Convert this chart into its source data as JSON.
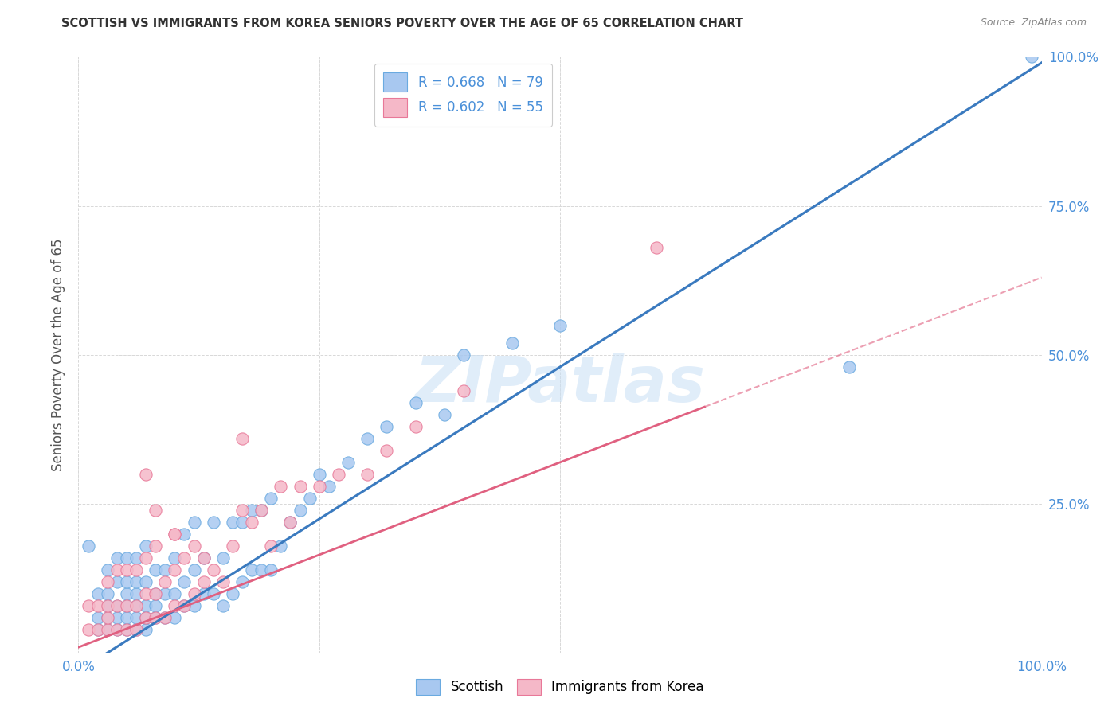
{
  "title": "SCOTTISH VS IMMIGRANTS FROM KOREA SENIORS POVERTY OVER THE AGE OF 65 CORRELATION CHART",
  "source": "Source: ZipAtlas.com",
  "ylabel": "Seniors Poverty Over the Age of 65",
  "legend_labels": [
    "Scottish",
    "Immigrants from Korea"
  ],
  "legend_r_n": [
    {
      "R": "0.668",
      "N": "79"
    },
    {
      "R": "0.602",
      "N": "55"
    }
  ],
  "scottish_color": "#a8c8f0",
  "scottish_edge_color": "#6aaae0",
  "korean_color": "#f5b8c8",
  "korean_edge_color": "#e87898",
  "background_color": "#ffffff",
  "grid_color": "#d8d8d8",
  "scottish_line_color": "#3a7abf",
  "korean_line_color": "#e06080",
  "axis_label_color": "#4a90d9",
  "title_color": "#333333",
  "watermark": "ZIPatlas",
  "scottish_scatter_x": [
    0.01,
    0.02,
    0.02,
    0.02,
    0.03,
    0.03,
    0.03,
    0.03,
    0.03,
    0.04,
    0.04,
    0.04,
    0.04,
    0.04,
    0.05,
    0.05,
    0.05,
    0.05,
    0.05,
    0.05,
    0.06,
    0.06,
    0.06,
    0.06,
    0.06,
    0.06,
    0.07,
    0.07,
    0.07,
    0.07,
    0.07,
    0.08,
    0.08,
    0.08,
    0.08,
    0.09,
    0.09,
    0.09,
    0.1,
    0.1,
    0.1,
    0.11,
    0.11,
    0.11,
    0.12,
    0.12,
    0.12,
    0.13,
    0.13,
    0.14,
    0.14,
    0.15,
    0.15,
    0.16,
    0.16,
    0.17,
    0.17,
    0.18,
    0.18,
    0.19,
    0.19,
    0.2,
    0.2,
    0.21,
    0.22,
    0.23,
    0.24,
    0.25,
    0.26,
    0.28,
    0.3,
    0.32,
    0.35,
    0.38,
    0.4,
    0.45,
    0.5,
    0.8,
    0.99
  ],
  "scottish_scatter_y": [
    0.18,
    0.04,
    0.06,
    0.1,
    0.04,
    0.06,
    0.08,
    0.1,
    0.14,
    0.04,
    0.06,
    0.08,
    0.12,
    0.16,
    0.04,
    0.06,
    0.08,
    0.1,
    0.12,
    0.16,
    0.04,
    0.06,
    0.08,
    0.1,
    0.12,
    0.16,
    0.04,
    0.06,
    0.08,
    0.12,
    0.18,
    0.06,
    0.08,
    0.1,
    0.14,
    0.06,
    0.1,
    0.14,
    0.06,
    0.1,
    0.16,
    0.08,
    0.12,
    0.2,
    0.08,
    0.14,
    0.22,
    0.1,
    0.16,
    0.1,
    0.22,
    0.08,
    0.16,
    0.1,
    0.22,
    0.12,
    0.22,
    0.14,
    0.24,
    0.14,
    0.24,
    0.14,
    0.26,
    0.18,
    0.22,
    0.24,
    0.26,
    0.3,
    0.28,
    0.32,
    0.36,
    0.38,
    0.42,
    0.4,
    0.5,
    0.52,
    0.55,
    0.48,
    1.0
  ],
  "korean_scatter_x": [
    0.01,
    0.01,
    0.02,
    0.02,
    0.03,
    0.03,
    0.03,
    0.03,
    0.04,
    0.04,
    0.04,
    0.05,
    0.05,
    0.05,
    0.06,
    0.06,
    0.06,
    0.07,
    0.07,
    0.07,
    0.08,
    0.08,
    0.08,
    0.08,
    0.09,
    0.09,
    0.1,
    0.1,
    0.1,
    0.11,
    0.11,
    0.12,
    0.12,
    0.13,
    0.14,
    0.15,
    0.16,
    0.17,
    0.18,
    0.19,
    0.2,
    0.21,
    0.22,
    0.23,
    0.25,
    0.27,
    0.3,
    0.32,
    0.35,
    0.4,
    0.07,
    0.1,
    0.13,
    0.17,
    0.6
  ],
  "korean_scatter_y": [
    0.04,
    0.08,
    0.04,
    0.08,
    0.04,
    0.06,
    0.08,
    0.12,
    0.04,
    0.08,
    0.14,
    0.04,
    0.08,
    0.14,
    0.04,
    0.08,
    0.14,
    0.06,
    0.1,
    0.16,
    0.06,
    0.1,
    0.18,
    0.24,
    0.06,
    0.12,
    0.08,
    0.14,
    0.2,
    0.08,
    0.16,
    0.1,
    0.18,
    0.12,
    0.14,
    0.12,
    0.18,
    0.24,
    0.22,
    0.24,
    0.18,
    0.28,
    0.22,
    0.28,
    0.28,
    0.3,
    0.3,
    0.34,
    0.38,
    0.44,
    0.3,
    0.2,
    0.16,
    0.36,
    0.68
  ],
  "scottish_line_slope": 1.02,
  "scottish_line_intercept": -0.03,
  "korean_line_slope": 0.62,
  "korean_line_intercept": 0.01
}
